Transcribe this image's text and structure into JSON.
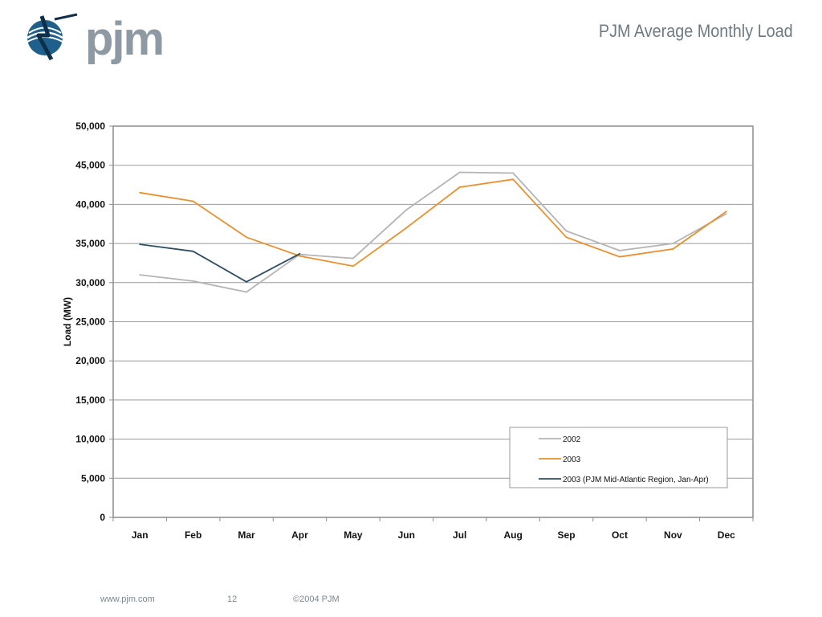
{
  "slide": {
    "title": "PJM Average Monthly Load",
    "logo_text": "pjm",
    "logo_icon": "pjm-globe-icon"
  },
  "footer": {
    "url": "www.pjm.com",
    "page": "12",
    "copyright": "©2004 PJM"
  },
  "chart_data": {
    "type": "line",
    "title": "",
    "xlabel": "",
    "ylabel": "Load (MW)",
    "ylim": [
      0,
      50000
    ],
    "yticks": [
      0,
      5000,
      10000,
      15000,
      20000,
      25000,
      30000,
      35000,
      40000,
      45000,
      50000
    ],
    "ytick_labels": [
      "0",
      "5,000",
      "10,000",
      "15,000",
      "20,000",
      "25,000",
      "30,000",
      "35,000",
      "40,000",
      "45,000",
      "50,000"
    ],
    "categories": [
      "Jan",
      "Feb",
      "Mar",
      "Apr",
      "May",
      "Jun",
      "Jul",
      "Aug",
      "Sep",
      "Oct",
      "Nov",
      "Dec"
    ],
    "grid": true,
    "legend_position": "bottom-right",
    "series": [
      {
        "name": "2002",
        "color": "#b4b4b4",
        "values": [
          31000,
          30200,
          28800,
          33600,
          33100,
          39300,
          44100,
          44000,
          36600,
          34100,
          35000,
          38800
        ]
      },
      {
        "name": "2003",
        "color": "#e8902f",
        "values": [
          41500,
          40400,
          35800,
          33400,
          32100,
          37000,
          42200,
          43200,
          35800,
          33300,
          34300,
          39100
        ]
      },
      {
        "name": "2003 (PJM Mid-Atlantic Region, Jan-Apr)",
        "color": "#2f4f63",
        "values": [
          34900,
          34000,
          30100,
          33700,
          null,
          null,
          null,
          null,
          null,
          null,
          null,
          null
        ]
      }
    ]
  }
}
